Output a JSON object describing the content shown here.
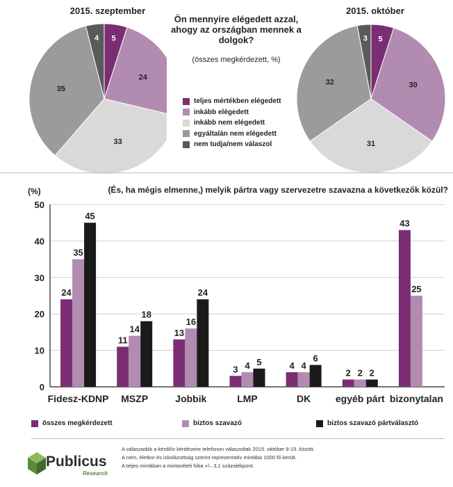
{
  "colors": {
    "purple": "#7b2d73",
    "light_purple": "#b28bb0",
    "light_gray": "#d9d9d9",
    "mid_gray": "#9b9b9b",
    "dark_gray": "#5a5a5a",
    "black": "#1a1a1a",
    "logo_green": "#6fa043"
  },
  "pies": {
    "title_left": "2015. szeptember",
    "title_right": "2015. október",
    "question": "Ön mennyire elégedett azzal, ahogy az országban mennek a dolgok?",
    "question_sub": "(összes megkérdezett, %)"
  },
  "bar_section": {
    "question": "(És, ha mégis elmenne,) melyik pártra vagy szervezetre szavazna a következők közül?",
    "unit": "(%)"
  },
  "notes": [
    "A válaszadók a kérdőív kérdéseire telefonon válaszoltak 2015. október 9-15. között.",
    "A nem, életkor és iskolázottság szerint reprezentatív mintába 1000 fő került.",
    "A teljes mintában a mintavételi hiba +/– 3,1 százalékpont."
  ],
  "logo": {
    "name": "Publicus",
    "sub": "Research"
  },
  "chart_data": [
    {
      "type": "pie",
      "title": "2015. szeptember",
      "labels": [
        "teljes mértékben elégedett",
        "inkább elégedett",
        "inkább nem elégedett",
        "egyáltalán nem elégedett",
        "nem tudja/nem válaszol"
      ],
      "values": [
        5,
        24,
        33,
        35,
        4
      ],
      "colors": [
        "#7b2d73",
        "#b28bb0",
        "#d9d9d9",
        "#9b9b9b",
        "#5a5a5a"
      ]
    },
    {
      "type": "pie",
      "title": "2015. október",
      "labels": [
        "teljes mértékben elégedett",
        "inkább elégedett",
        "inkább nem elégedett",
        "egyáltalán nem elégedett",
        "nem tudja/nem válaszol"
      ],
      "values": [
        5,
        30,
        31,
        32,
        3
      ],
      "colors": [
        "#7b2d73",
        "#b28bb0",
        "#d9d9d9",
        "#9b9b9b",
        "#5a5a5a"
      ]
    },
    {
      "type": "bar",
      "title": "(És, ha mégis elmenne,) melyik pártra vagy szervezetre szavazna a következők közül?",
      "ylabel": "(%)",
      "ylim": [
        0,
        50
      ],
      "yticks": [
        0,
        10,
        20,
        30,
        40,
        50
      ],
      "categories": [
        "Fidesz-KDNP",
        "MSZP",
        "Jobbik",
        "LMP",
        "DK",
        "egyéb párt",
        "bizonytalan"
      ],
      "series": [
        {
          "name": "összes megkérdezett",
          "color": "#7b2d73",
          "values": [
            24,
            11,
            13,
            3,
            4,
            2,
            43
          ]
        },
        {
          "name": "biztos szavazó",
          "color": "#b28bb0",
          "values": [
            35,
            14,
            16,
            4,
            4,
            2,
            25
          ]
        },
        {
          "name": "biztos szavazó pártválasztó",
          "color": "#1a1a1a",
          "values": [
            45,
            18,
            24,
            5,
            6,
            2,
            null
          ]
        }
      ],
      "grid": true
    }
  ]
}
